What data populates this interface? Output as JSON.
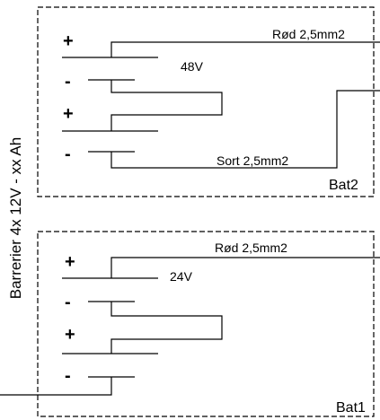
{
  "side_label": "Barrerier 4x 12V - xx Ah",
  "bat2": {
    "title": "Bat2",
    "red_wire_label": "Rød 2,5mm2",
    "black_wire_label": "Sort 2,5mm2",
    "voltage_label": "48V",
    "signs": [
      "+",
      "-",
      "+",
      "-"
    ]
  },
  "bat1": {
    "title": "Bat1",
    "red_wire_label": "Rød 2,5mm2",
    "voltage_label": "24V",
    "signs": [
      "+",
      "-",
      "+",
      "-"
    ]
  }
}
